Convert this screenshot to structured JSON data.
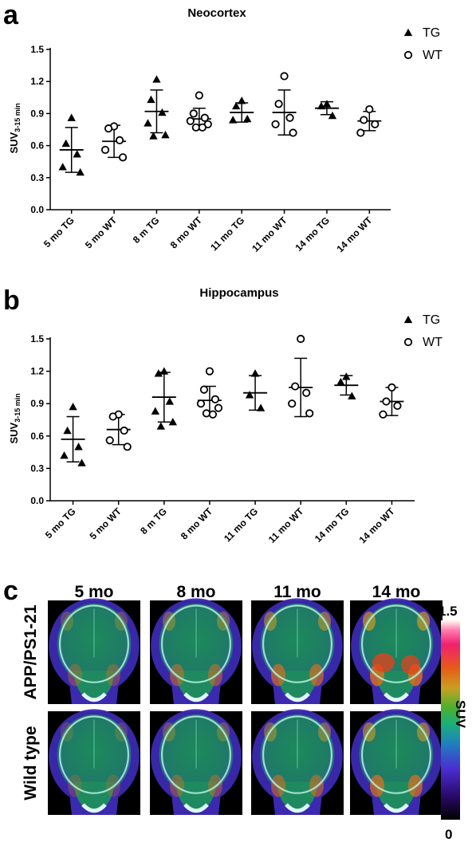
{
  "panels": {
    "a": "a",
    "b": "b",
    "c": "c"
  },
  "chart_data": [
    {
      "type": "scatter",
      "title": "Neocortex",
      "ylabel": "SUV",
      "ylabel_sub": "3-15 min",
      "ylim": [
        0,
        1.5
      ],
      "yticks": [
        "0.0",
        "0.3",
        "0.6",
        "0.9",
        "1.2",
        "1.5"
      ],
      "categories": [
        "5 mo TG",
        "5 mo WT",
        "8 m TG",
        "8 mo WT",
        "11 mo TG",
        "11 mo WT",
        "14 mo TG",
        "14 mo WT"
      ],
      "legend": [
        {
          "marker": "triangle",
          "label": "TG"
        },
        {
          "marker": "circle",
          "label": "WT"
        }
      ],
      "groups": [
        {
          "marker": "triangle",
          "points": [
            0.86,
            0.62,
            0.52,
            0.4,
            0.35
          ],
          "mean": 0.56,
          "sd": 0.21
        },
        {
          "marker": "circle",
          "points": [
            0.78,
            0.76,
            0.65,
            0.56,
            0.49
          ],
          "mean": 0.64,
          "sd": 0.15
        },
        {
          "marker": "triangle",
          "points": [
            1.22,
            1.03,
            0.91,
            0.81,
            0.7,
            0.69
          ],
          "mean": 0.92,
          "sd": 0.2
        },
        {
          "marker": "circle",
          "points": [
            1.07,
            0.9,
            0.86,
            0.83,
            0.8,
            0.77,
            0.77
          ],
          "mean": 0.85,
          "sd": 0.1
        },
        {
          "marker": "triangle",
          "points": [
            1.02,
            0.97,
            0.85,
            0.84
          ],
          "mean": 0.91,
          "sd": 0.09
        },
        {
          "marker": "circle",
          "points": [
            1.25,
            0.99,
            0.86,
            0.8,
            0.72
          ],
          "mean": 0.91,
          "sd": 0.21
        },
        {
          "marker": "triangle",
          "points": [
            0.99,
            0.97,
            0.88
          ],
          "mean": 0.95,
          "sd": 0.06
        },
        {
          "marker": "circle",
          "points": [
            0.94,
            0.84,
            0.8,
            0.72
          ],
          "mean": 0.83,
          "sd": 0.09
        }
      ]
    },
    {
      "type": "scatter",
      "title": "Hippocampus",
      "ylabel": "SUV",
      "ylabel_sub": "3-15 min",
      "ylim": [
        0,
        1.5
      ],
      "yticks": [
        "0.0",
        "0.3",
        "0.6",
        "0.9",
        "1.2",
        "1.5"
      ],
      "categories": [
        "5 mo TG",
        "5 mo WT",
        "8 m TG",
        "8 mo WT",
        "11 mo TG",
        "11 mo WT",
        "14 mo TG",
        "14 mo WT"
      ],
      "legend": [
        {
          "marker": "triangle",
          "label": "TG"
        },
        {
          "marker": "circle",
          "label": "WT"
        }
      ],
      "groups": [
        {
          "marker": "triangle",
          "points": [
            0.87,
            0.65,
            0.5,
            0.42,
            0.35
          ],
          "mean": 0.57,
          "sd": 0.21
        },
        {
          "marker": "circle",
          "points": [
            0.8,
            0.78,
            0.65,
            0.56,
            0.5
          ],
          "mean": 0.66,
          "sd": 0.14
        },
        {
          "marker": "triangle",
          "points": [
            1.2,
            1.18,
            0.92,
            0.83,
            0.73,
            0.69
          ],
          "mean": 0.96,
          "sd": 0.23
        },
        {
          "marker": "circle",
          "points": [
            1.2,
            1.03,
            0.94,
            0.9,
            0.86,
            0.81,
            0.8
          ],
          "mean": 0.93,
          "sd": 0.13
        },
        {
          "marker": "triangle",
          "points": [
            1.18,
            0.98,
            0.86
          ],
          "mean": 1.0,
          "sd": 0.16
        },
        {
          "marker": "circle",
          "points": [
            1.5,
            1.06,
            1.0,
            0.9,
            0.81
          ],
          "mean": 1.05,
          "sd": 0.27
        },
        {
          "marker": "triangle",
          "points": [
            1.15,
            1.1,
            0.97
          ],
          "mean": 1.07,
          "sd": 0.09
        },
        {
          "marker": "circle",
          "points": [
            1.05,
            0.92,
            0.88,
            0.8
          ],
          "mean": 0.92,
          "sd": 0.13
        }
      ]
    }
  ],
  "images": {
    "columns": [
      "5 mo",
      "8 mo",
      "11 mo",
      "14 mo"
    ],
    "rows": [
      "APP/PS1-21",
      "Wild type"
    ],
    "colorbar": {
      "max": "1.5",
      "min": "0",
      "label": "SUV"
    }
  }
}
